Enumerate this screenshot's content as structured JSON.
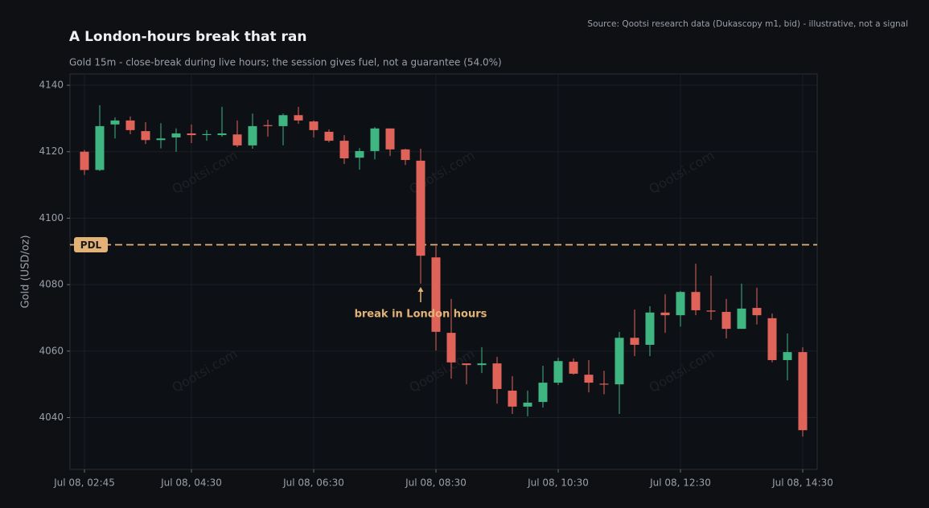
{
  "chart_data": {
    "type": "candlestick",
    "title": "A London-hours break that ran",
    "subtitle": "Gold 15m - close-break during live hours; the session gives fuel, not a guarantee (54.0%)",
    "source": "Source: Qootsi research data (Dukascopy m1, bid) - illustrative, not a signal",
    "ylabel": "Gold (USD/oz)",
    "x": [
      "Jul 08, 02:45",
      "Jul 08, 03:00",
      "Jul 08, 03:15",
      "Jul 08, 03:30",
      "Jul 08, 03:45",
      "Jul 08, 04:00",
      "Jul 08, 04:15",
      "Jul 08, 04:30",
      "Jul 08, 04:45",
      "Jul 08, 05:00",
      "Jul 08, 05:15",
      "Jul 08, 05:30",
      "Jul 08, 05:45",
      "Jul 08, 06:00",
      "Jul 08, 06:15",
      "Jul 08, 06:30",
      "Jul 08, 06:45",
      "Jul 08, 07:00",
      "Jul 08, 07:15",
      "Jul 08, 07:30",
      "Jul 08, 07:45",
      "Jul 08, 08:00",
      "Jul 08, 08:15",
      "Jul 08, 08:30",
      "Jul 08, 08:45",
      "Jul 08, 09:00",
      "Jul 08, 09:15",
      "Jul 08, 09:30",
      "Jul 08, 09:45",
      "Jul 08, 10:00",
      "Jul 08, 10:15",
      "Jul 08, 10:30",
      "Jul 08, 10:45",
      "Jul 08, 11:00",
      "Jul 08, 11:15",
      "Jul 08, 11:30",
      "Jul 08, 11:45",
      "Jul 08, 12:00",
      "Jul 08, 12:15",
      "Jul 08, 12:30",
      "Jul 08, 12:45",
      "Jul 08, 13:00",
      "Jul 08, 13:15",
      "Jul 08, 13:30",
      "Jul 08, 13:45",
      "Jul 08, 14:00",
      "Jul 08, 14:15",
      "Jul 08, 14:30"
    ],
    "open": [
      4120,
      4114.5,
      4128.2,
      4129.4,
      4126.2,
      4123.5,
      4124.3,
      4125.5,
      4125.1,
      4125,
      4125.2,
      4121.9,
      4128,
      4127.7,
      4131,
      4129.1,
      4126,
      4123.3,
      4118.2,
      4120.2,
      4127,
      4120.7,
      4117.3,
      4088.2,
      4065.5,
      4056.3,
      4055.8,
      4056.3,
      4048.1,
      4043.3,
      4044.7,
      4050.5,
      4056.8,
      4052.9,
      4050.2,
      4050,
      4064,
      4061.9,
      4071.6,
      4070.8,
      4077.8,
      4072.2,
      4071.8,
      4066.7,
      4073,
      4069.9,
      4057.3,
      4059.7
    ],
    "high": [
      4120.5,
      4134,
      4130.3,
      4130.6,
      4128.9,
      4128.6,
      4127,
      4128.2,
      4126.5,
      4133.5,
      4129.4,
      4131.5,
      4129.6,
      4131.5,
      4133.5,
      4129.4,
      4126.7,
      4125,
      4121.1,
      4127.4,
      4127,
      4120.9,
      4120.9,
      4091.6,
      4075.7,
      4056.3,
      4061.2,
      4058.3,
      4052.5,
      4048.1,
      4055.6,
      4058,
      4057.8,
      4057.3,
      4054.1,
      4065.8,
      4072.5,
      4073.5,
      4077.1,
      4078.1,
      4086.3,
      4082.7,
      4075.7,
      4080.3,
      4079.1,
      4071.3,
      4065.3,
      4061.2
    ],
    "low": [
      4113,
      4114.2,
      4124,
      4125.3,
      4122.3,
      4121,
      4120,
      4122.6,
      4123.3,
      4124.5,
      4121.4,
      4120.9,
      4124.5,
      4121.9,
      4128.4,
      4124.3,
      4122.8,
      4116.3,
      4114.6,
      4117.7,
      4118.7,
      4116,
      4080.3,
      4060.2,
      4051.7,
      4050,
      4053.4,
      4044.2,
      4041.1,
      4040.4,
      4043,
      4049.8,
      4052.9,
      4047.6,
      4047,
      4041.1,
      4058.5,
      4058.5,
      4065.5,
      4067.4,
      4070.8,
      4069.4,
      4063.8,
      4066.7,
      4068,
      4056.6,
      4051.2,
      4034.3
    ],
    "close": [
      4114.5,
      4127.7,
      4129.4,
      4126.5,
      4123.5,
      4124,
      4125.5,
      4125,
      4125.3,
      4125.5,
      4121.9,
      4127.7,
      4127.7,
      4131,
      4129.4,
      4126.5,
      4123.3,
      4118,
      4120.2,
      4127,
      4120.7,
      4117.5,
      4088.7,
      4065.8,
      4056.6,
      4055.8,
      4056.3,
      4048.6,
      4043.3,
      4044.5,
      4050.5,
      4057,
      4053.2,
      4050.5,
      4050,
      4064,
      4061.9,
      4071.6,
      4070.8,
      4077.8,
      4072.3,
      4071.9,
      4066.7,
      4072.8,
      4070.8,
      4057.3,
      4059.7,
      4036.2
    ],
    "up_color": "#3fb582",
    "down_color": "#e0635a",
    "ylim": [
      4024.4,
      4143.4
    ],
    "yticks": [
      4040,
      4060,
      4080,
      4100,
      4120,
      4140
    ],
    "xticks": [
      "Jul 08, 02:45",
      "Jul 08, 04:30",
      "Jul 08, 06:30",
      "Jul 08, 08:30",
      "Jul 08, 10:30",
      "Jul 08, 12:30",
      "Jul 08, 14:30"
    ],
    "grid": true,
    "reference_line": {
      "label": "PDL",
      "value": 4092,
      "color": "#e3b277"
    },
    "annotation": {
      "text": "break in London hours",
      "x": "Jul 08, 08:15",
      "y": 4079.3,
      "color": "#e3b277"
    },
    "watermarks": [
      "Qootsi.com",
      "Qootsi.com",
      "Qootsi.com",
      "Qootsi.com",
      "Qootsi.com",
      "Qootsi.com"
    ]
  }
}
